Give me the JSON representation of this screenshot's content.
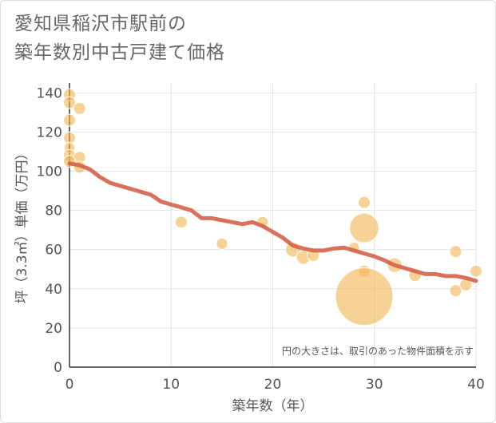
{
  "title_lines": [
    "愛知県稲沢市駅前の",
    "築年数別中古戸建て価格"
  ],
  "chart_data": {
    "type": "scatter",
    "title": "愛知県稲沢市駅前の築年数別中古戸建て価格",
    "xlabel": "築年数（年）",
    "ylabel": "坪（3.3㎡）単価（万円）",
    "xlim": [
      0,
      40
    ],
    "ylim": [
      0,
      145
    ],
    "x_ticks": [
      0,
      10,
      20,
      30,
      40
    ],
    "y_ticks": [
      0,
      20,
      40,
      60,
      80,
      100,
      120,
      140
    ],
    "grid": true,
    "note": "円の大きさは、取引のあった物件面積を示す",
    "colors": {
      "bubble": "#f2b450",
      "trend": "#d4614a",
      "grid": "#dde3ea",
      "text": "#555555"
    },
    "bubbles": [
      {
        "x": 0,
        "y": 139,
        "size": 1
      },
      {
        "x": 0,
        "y": 135,
        "size": 1
      },
      {
        "x": 1,
        "y": 132,
        "size": 1
      },
      {
        "x": 0,
        "y": 126,
        "size": 1
      },
      {
        "x": 0,
        "y": 117,
        "size": 1
      },
      {
        "x": 0,
        "y": 112,
        "size": 0.8
      },
      {
        "x": 0,
        "y": 108,
        "size": 1
      },
      {
        "x": 1,
        "y": 107,
        "size": 1
      },
      {
        "x": 0,
        "y": 105,
        "size": 1
      },
      {
        "x": 1,
        "y": 102,
        "size": 1
      },
      {
        "x": 11,
        "y": 74,
        "size": 1
      },
      {
        "x": 15,
        "y": 63,
        "size": 0.9
      },
      {
        "x": 19,
        "y": 74,
        "size": 0.9
      },
      {
        "x": 22,
        "y": 60,
        "size": 1.5
      },
      {
        "x": 23,
        "y": 56,
        "size": 1.3
      },
      {
        "x": 24,
        "y": 57,
        "size": 1
      },
      {
        "x": 28,
        "y": 61,
        "size": 0.8
      },
      {
        "x": 29,
        "y": 84,
        "size": 1
      },
      {
        "x": 29,
        "y": 71,
        "size": 6
      },
      {
        "x": 29,
        "y": 49,
        "size": 1
      },
      {
        "x": 29,
        "y": 36,
        "size": 23
      },
      {
        "x": 32,
        "y": 52,
        "size": 1.5
      },
      {
        "x": 34,
        "y": 47,
        "size": 1.1
      },
      {
        "x": 38,
        "y": 59,
        "size": 1
      },
      {
        "x": 38,
        "y": 39,
        "size": 1
      },
      {
        "x": 39,
        "y": 42,
        "size": 1
      },
      {
        "x": 40,
        "y": 49,
        "size": 1
      }
    ],
    "trend": {
      "x": [
        0,
        1,
        2,
        3,
        4,
        5,
        6,
        7,
        8,
        9,
        10,
        11,
        12,
        13,
        14,
        15,
        16,
        17,
        18,
        19,
        20,
        21,
        22,
        23,
        24,
        25,
        26,
        27,
        28,
        29,
        30,
        31,
        32,
        33,
        34,
        35,
        36,
        37,
        38,
        39,
        40
      ],
      "y": [
        104,
        103,
        101,
        97,
        94,
        92.5,
        91,
        89.5,
        88,
        84.5,
        83,
        81.5,
        80,
        76,
        76,
        75,
        74,
        73,
        74,
        72,
        69,
        66,
        62,
        60.5,
        59.5,
        59.5,
        60.5,
        61,
        59.5,
        58,
        56.5,
        54.5,
        52,
        50.5,
        49,
        47.5,
        47.5,
        46.5,
        46.5,
        45.5,
        44
      ]
    }
  }
}
